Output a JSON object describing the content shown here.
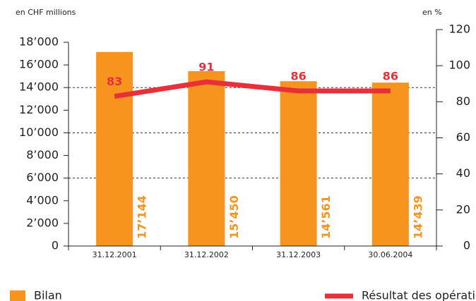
{
  "chart_data": {
    "type": "bar_line",
    "y_label": "en CHF millions",
    "y2_label": "en %",
    "categories": [
      "31.12.2001",
      "31.12.2002",
      "31.12.2003",
      "30.06.2004"
    ],
    "series": [
      {
        "name": "Bilan",
        "color": "#f7941d",
        "type": "bar",
        "values": [
          17144,
          15450,
          14561,
          14439
        ],
        "value_labels": [
          "17’144",
          "15’450",
          "14’561",
          "14’439"
        ]
      },
      {
        "name": "Résultat des opérations d’intérêts",
        "color": "#e8303a",
        "type": "line",
        "axis": "y2",
        "values": [
          83,
          91,
          86,
          86
        ]
      }
    ],
    "ylim": [
      0,
      18000
    ],
    "yticks": [
      0,
      {
        "value": 2000,
        "label": "2’000"
      },
      {
        "value": 4000,
        "label": "4’000"
      },
      {
        "value": 6000,
        "label": "6’000"
      },
      {
        "value": 8000,
        "label": "8’000"
      },
      {
        "value": 10000,
        "label": "10’000"
      },
      {
        "value": 12000,
        "label": "12’000"
      },
      {
        "value": 14000,
        "label": "14’000"
      },
      {
        "value": 16000,
        "label": "16’000"
      },
      {
        "value": 18000,
        "label": "18’000"
      }
    ],
    "y2lim": [
      0,
      120
    ],
    "y2ticks": [
      0,
      20,
      40,
      60,
      80,
      100,
      120
    ],
    "grid_lines": [
      6000,
      10000,
      14000
    ]
  }
}
